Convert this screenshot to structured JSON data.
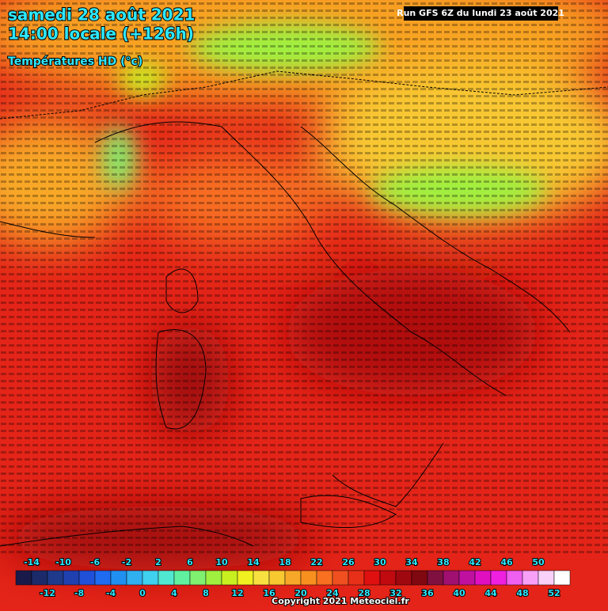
{
  "header": {
    "date": "samedi 28 août 2021",
    "time": "14:00 locale (+126h)",
    "subtitle": "Températures HD (°c)",
    "run": "Run GFS 6Z du lundi 23 août 2021"
  },
  "legend": {
    "labels": [
      -14,
      -12,
      -10,
      -8,
      -6,
      -4,
      -2,
      0,
      2,
      4,
      6,
      8,
      10,
      12,
      14,
      16,
      18,
      20,
      22,
      24,
      26,
      28,
      30,
      32,
      34,
      36,
      38,
      40,
      42,
      44,
      46,
      48,
      50,
      52
    ],
    "colors": [
      "#1a1a4a",
      "#1c2a6a",
      "#1f3a8a",
      "#2040b0",
      "#2050d8",
      "#1f6cf0",
      "#2090f0",
      "#30b0f0",
      "#40d0f0",
      "#50e8d0",
      "#60f0a0",
      "#80f070",
      "#a0f040",
      "#c8f020",
      "#f0f020",
      "#f8e040",
      "#f8c830",
      "#f8a828",
      "#f89020",
      "#f87020",
      "#f05020",
      "#e83018",
      "#e01010",
      "#c00a10",
      "#a00810",
      "#800810",
      "#801040",
      "#a01070",
      "#c010a0",
      "#e010c0",
      "#f020e0",
      "#f060f0",
      "#f8a0f8",
      "#f8d0f8",
      "#ffffff"
    ]
  },
  "footer": {
    "copyright": "Copyright 2021 Meteociel.fr"
  }
}
